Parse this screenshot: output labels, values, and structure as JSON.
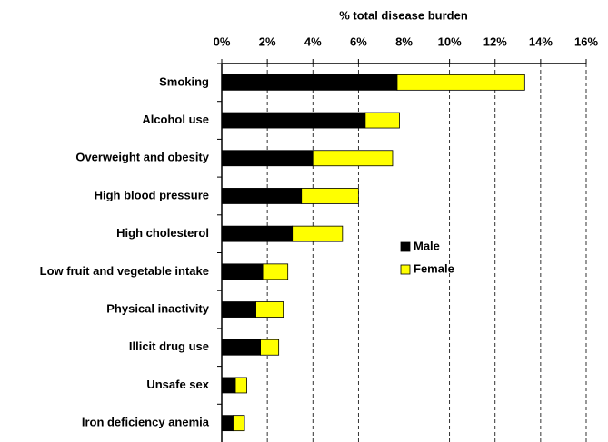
{
  "chart_data": {
    "type": "stacked-barh",
    "x_label": "% total disease burden",
    "categories": [
      "Smoking",
      "Alcohol use",
      "Overweight and obesity",
      "High blood pressure",
      "High cholesterol",
      "Low fruit and vegetable intake",
      "Physical inactivity",
      "Illicit drug use",
      "Unsafe sex",
      "Iron deficiency anemia"
    ],
    "series": [
      {
        "name": "Male",
        "color": "#000000",
        "values": [
          7.7,
          6.3,
          4.0,
          3.5,
          3.1,
          1.8,
          1.5,
          1.7,
          0.6,
          0.5
        ]
      },
      {
        "name": "Female",
        "color": "#ffff00",
        "values": [
          5.6,
          1.5,
          3.5,
          2.5,
          2.2,
          1.1,
          1.2,
          0.8,
          0.5,
          0.5
        ]
      }
    ],
    "xlim": [
      0,
      16
    ],
    "xticks": [
      {
        "value": 0,
        "label": "0%"
      },
      {
        "value": 2,
        "label": "2%"
      },
      {
        "value": 4,
        "label": "4%"
      },
      {
        "value": 6,
        "label": "6%"
      },
      {
        "value": 8,
        "label": "8%"
      },
      {
        "value": 10,
        "label": "10%"
      },
      {
        "value": 12,
        "label": "12%"
      },
      {
        "value": 14,
        "label": "14%"
      },
      {
        "value": 16,
        "label": "16%"
      }
    ],
    "grid": true,
    "legend_position": "center"
  }
}
